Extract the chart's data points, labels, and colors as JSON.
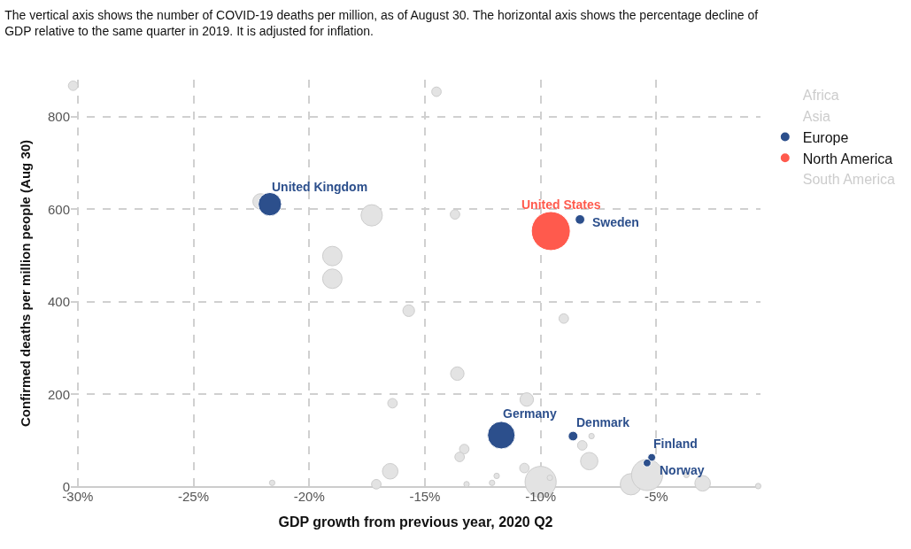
{
  "chart_data": {
    "type": "bubble",
    "title": "The vertical axis shows the number of COVID-19 deaths per million, as of August 30. The horizontal axis shows the percentage decline of GDP relative to the same quarter in 2019. It is adjusted for inflation.",
    "xlabel": "GDP growth from previous year, 2020 Q2",
    "ylabel": "Confirmed deaths per million people (Aug 30)",
    "xlim": [
      -30.3,
      -0.5
    ],
    "xticks": [
      {
        "value": -30,
        "label": "-30%"
      },
      {
        "value": -25,
        "label": "-25%"
      },
      {
        "value": -20,
        "label": "-20%"
      },
      {
        "value": -15,
        "label": "-15%"
      },
      {
        "value": -10,
        "label": "-10%"
      },
      {
        "value": -5,
        "label": "-5%"
      }
    ],
    "ylim": [
      0,
      880
    ],
    "yticks": [
      0,
      200,
      400,
      600,
      800
    ],
    "grid": true,
    "legend": "top right",
    "series": [
      {
        "color": "#e3e3e3",
        "x": [
          -30.2,
          -14.5,
          -22.1,
          -17.3,
          -19.0,
          -19.0,
          -15.7,
          -13.7,
          -9.0,
          -13.6,
          -10.6,
          -16.4,
          -13.3,
          -13.5,
          -8.2,
          -7.8,
          -7.9,
          -10.7,
          -11.9,
          -13.2,
          -12.1,
          -10.0,
          -9.6,
          -6.1,
          -5.4,
          -3.7,
          -3.0,
          -0.6,
          -21.6,
          -17.1,
          -16.5
        ],
        "values": [
          867,
          854,
          617,
          587,
          499,
          450,
          381,
          589,
          364,
          245,
          189,
          181,
          82,
          65,
          90,
          110,
          56,
          41,
          24,
          6,
          9,
          11,
          20,
          6,
          26,
          26,
          8,
          2,
          9,
          6,
          34
        ],
        "sizes": [
          0.06,
          0.06,
          0.16,
          0.3,
          0.25,
          0.25,
          0.09,
          0.06,
          0.06,
          0.12,
          0.12,
          0.06,
          0.06,
          0.06,
          0.06,
          0.02,
          0.2,
          0.06,
          0.02,
          0.02,
          0.02,
          0.64,
          0.02,
          0.3,
          0.64,
          0.02,
          0.16,
          0.02,
          0.02,
          0.06,
          0.16
        ]
      },
      {
        "name": "Africa",
        "color": "#cccccc"
      },
      {
        "name": "Asia",
        "color": "#cccccc"
      },
      {
        "name": "Europe",
        "color": "#2c4f8c",
        "x": [
          -21.7,
          -8.3,
          -11.7,
          -8.6,
          -5.2,
          -5.4
        ],
        "values": [
          611,
          578,
          112,
          110,
          64,
          52
        ],
        "sizes": [
          0.36,
          0.06,
          0.5,
          0.06,
          0.04,
          0.04
        ]
      },
      {
        "name": "North America",
        "color": "#ff5a4d",
        "x": [
          -9.56
        ],
        "values": [
          553
        ],
        "sizes": [
          1
        ]
      },
      {
        "name": "South America",
        "color": "#cccccc"
      }
    ],
    "annotations": [
      {
        "text": "United Kingdom",
        "x": -21.7,
        "y": 611
      },
      {
        "text": "United States",
        "x": -9.56,
        "y": 553
      },
      {
        "text": "Sweden",
        "x": -8.3,
        "y": 578
      },
      {
        "text": "Germany",
        "x": -11.7,
        "y": 112
      },
      {
        "text": "Denmark",
        "x": -8.6,
        "y": 110
      },
      {
        "text": "Finland",
        "x": -5.2,
        "y": 64
      },
      {
        "text": "Norway",
        "x": -5.4,
        "y": 52
      }
    ]
  }
}
